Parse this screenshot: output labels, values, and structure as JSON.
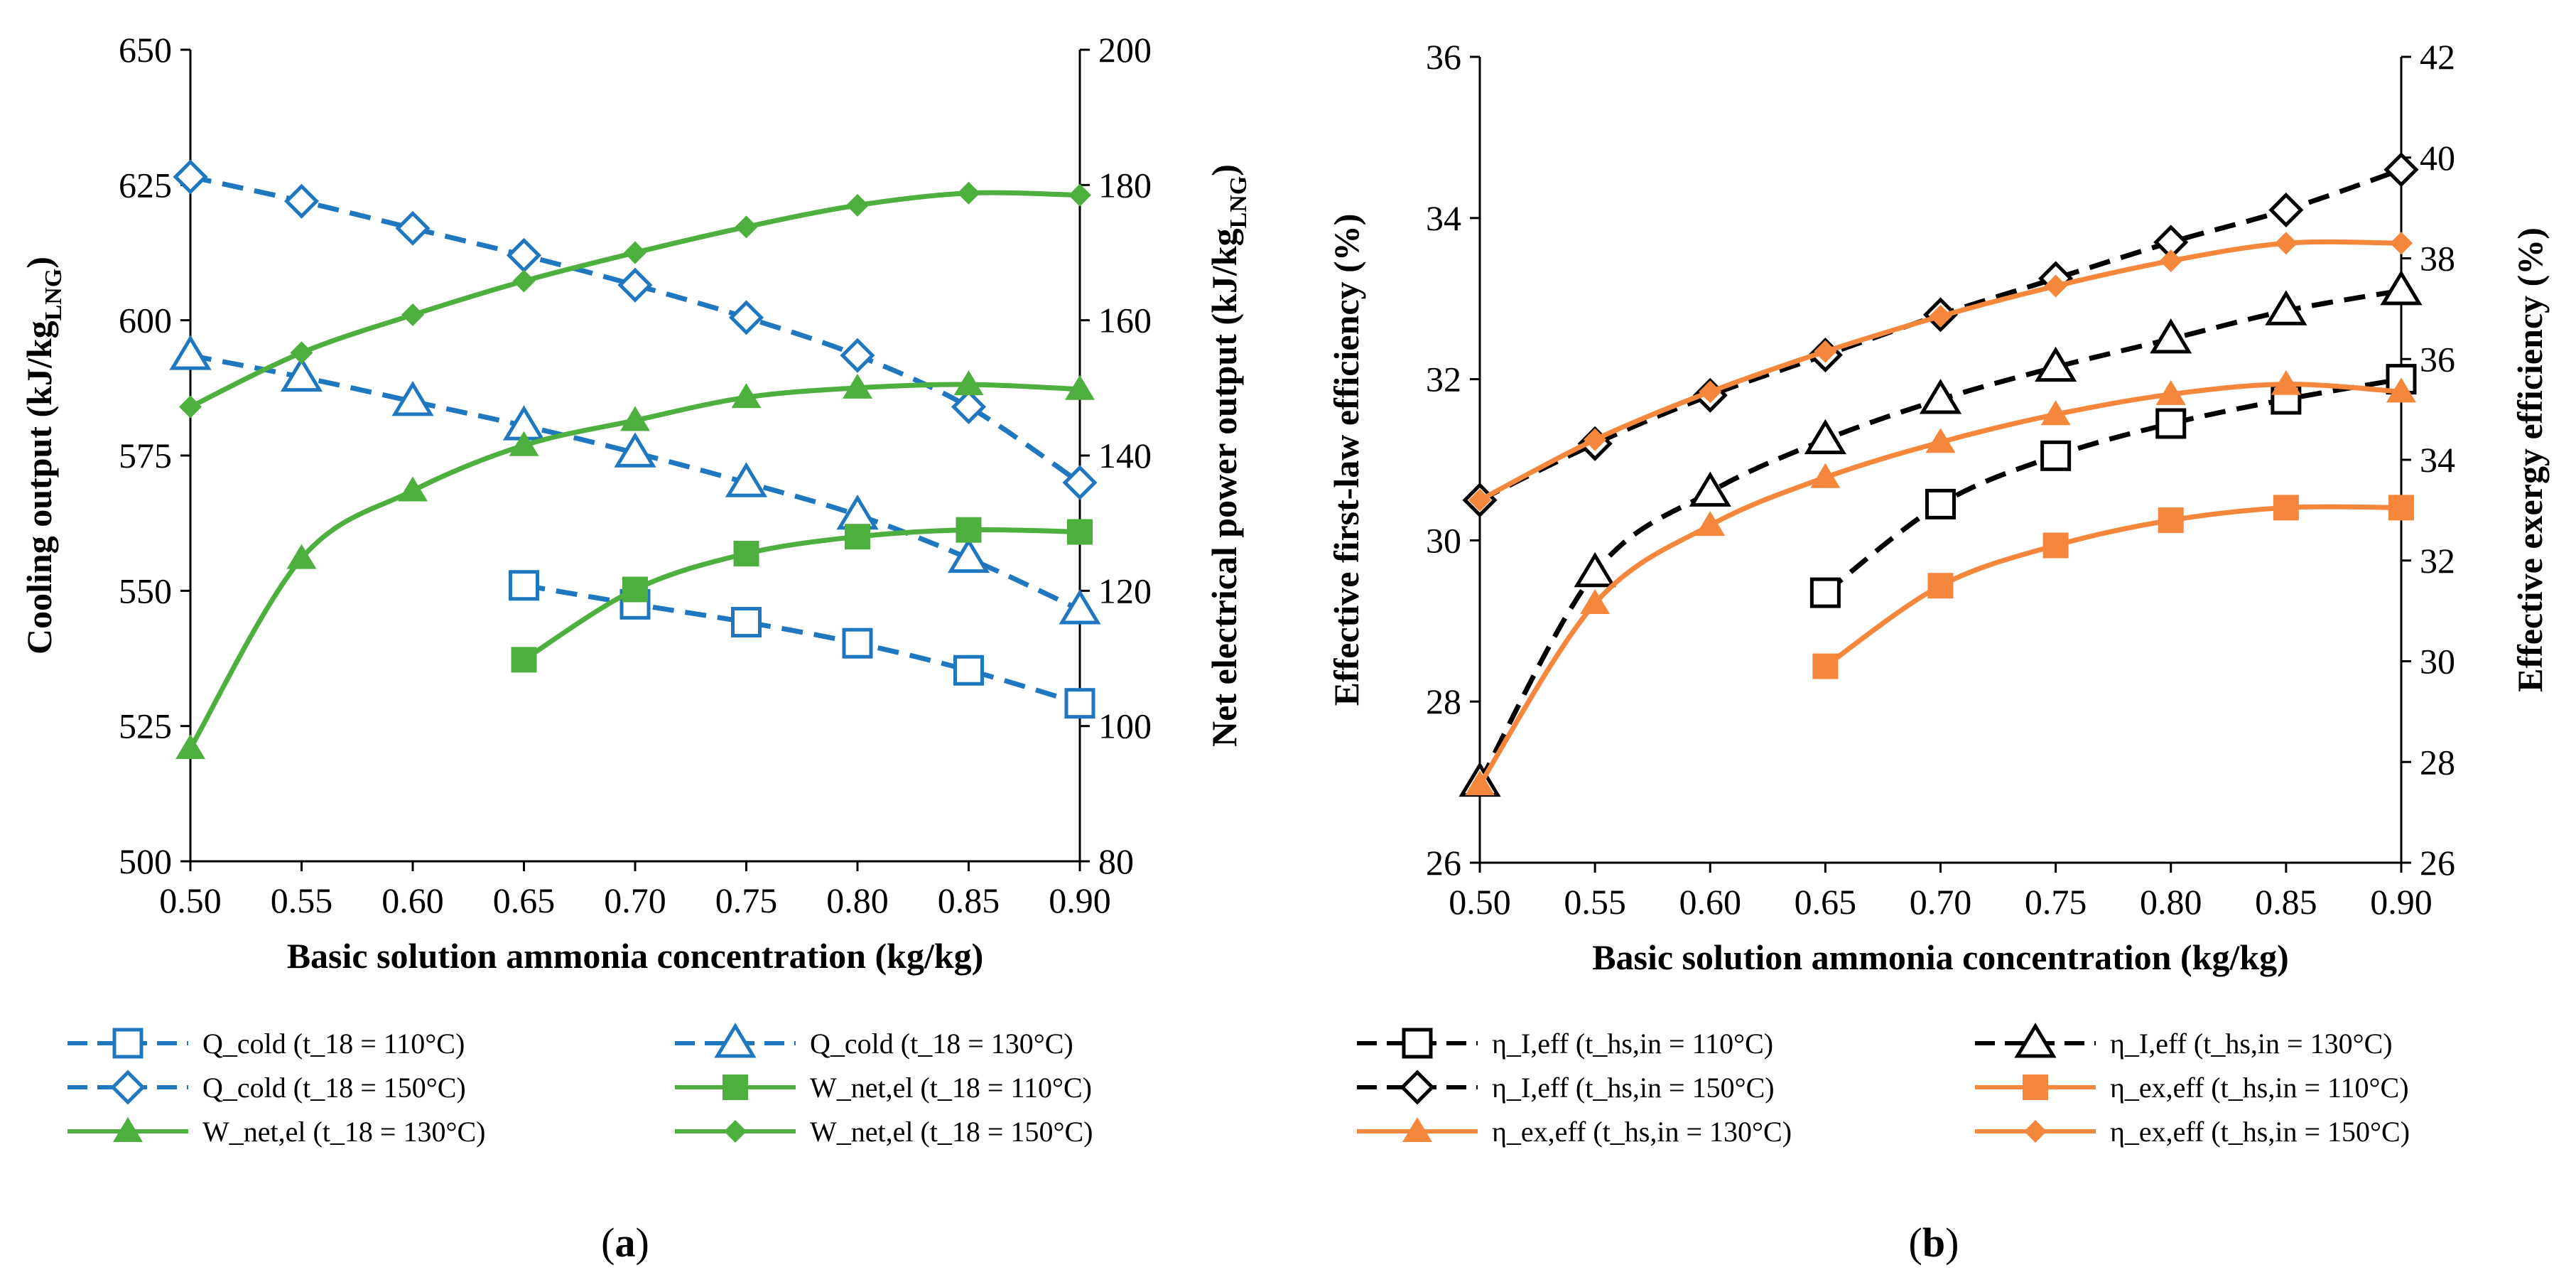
{
  "panels": [
    {
      "label": "(a)",
      "label_prefix": "(",
      "label_letter": "a",
      "label_suffix": ")"
    },
    {
      "label": "(b)",
      "label_prefix": "(",
      "label_letter": "b",
      "label_suffix": ")"
    }
  ],
  "colors": {
    "blue": "#1F77C0",
    "green": "#4DAF3D",
    "black": "#000000",
    "orange": "#F5873C"
  },
  "chart_data": [
    {
      "type": "line",
      "panel": "(a)",
      "x": [
        0.5,
        0.55,
        0.6,
        0.65,
        0.7,
        0.75,
        0.8,
        0.85,
        0.9
      ],
      "x_ticks": [
        "0.50",
        "0.55",
        "0.60",
        "0.65",
        "0.70",
        "0.75",
        "0.80",
        "0.85",
        "0.90"
      ],
      "xlim": [
        0.5,
        0.9
      ],
      "xlabel": "Basic solution ammonia concentration (kg/kg)",
      "ylabel_left": {
        "main": "Cooling output (kJ/kg",
        "sub": "LNG",
        "close": ")"
      },
      "ylabel_right": {
        "main": "Net electrical power output (kJ/kg",
        "sub": "LNG",
        "close": ")"
      },
      "ylim_left": [
        500,
        650
      ],
      "yticks_left": [
        "500",
        "525",
        "550",
        "575",
        "600",
        "625",
        "650"
      ],
      "ylim_right": [
        80,
        200
      ],
      "yticks_right": [
        "80",
        "100",
        "120",
        "140",
        "160",
        "180",
        "200"
      ],
      "series": [
        {
          "name": "Q_cold (t_18 = 110°C)",
          "axis": "left",
          "color": "blue",
          "dash": true,
          "marker": "square",
          "filled": false,
          "values": [
            null,
            null,
            null,
            551.0,
            547.5,
            544.2,
            540.3,
            535.3,
            529.2
          ]
        },
        {
          "name": "Q_cold (t_18 = 130°C)",
          "axis": "left",
          "color": "blue",
          "dash": true,
          "marker": "triangle",
          "filled": false,
          "values": [
            593.5,
            589.5,
            585.0,
            580.5,
            575.5,
            570.0,
            564.0,
            556.0,
            546.5
          ]
        },
        {
          "name": "Q_cold (t_18 = 150°C)",
          "axis": "left",
          "color": "blue",
          "dash": true,
          "marker": "diamond",
          "filled": false,
          "values": [
            626.5,
            622.0,
            617.0,
            612.0,
            606.5,
            600.5,
            593.5,
            584.0,
            570.0
          ]
        },
        {
          "name": "W_net,el (t_18 = 110°C)",
          "axis": "right",
          "color": "green",
          "dash": false,
          "marker": "square",
          "filled": true,
          "values": [
            null,
            null,
            null,
            109.8,
            120.2,
            125.5,
            128.0,
            129.0,
            128.7
          ]
        },
        {
          "name": "W_net,el (t_18 = 130°C)",
          "axis": "right",
          "color": "green",
          "dash": false,
          "marker": "triangle",
          "filled": true,
          "values": [
            96.7,
            124.8,
            134.8,
            141.5,
            145.2,
            148.6,
            150.0,
            150.5,
            149.8
          ]
        },
        {
          "name": "W_net,el (t_18 = 150°C)",
          "axis": "right",
          "color": "green",
          "dash": false,
          "marker": "diamond",
          "filled": true,
          "values": [
            147.2,
            155.2,
            160.8,
            165.8,
            170.0,
            173.8,
            177.0,
            178.8,
            178.5
          ]
        }
      ]
    },
    {
      "type": "line",
      "panel": "(b)",
      "x": [
        0.5,
        0.55,
        0.6,
        0.65,
        0.7,
        0.75,
        0.8,
        0.85,
        0.9
      ],
      "x_ticks": [
        "0.50",
        "0.55",
        "0.60",
        "0.65",
        "0.70",
        "0.75",
        "0.80",
        "0.85",
        "0.90"
      ],
      "xlim": [
        0.5,
        0.9
      ],
      "xlabel": "Basic solution ammonia concentration (kg/kg)",
      "ylabel_left": {
        "main": "Effective first-law efficiency (%)",
        "sub": "",
        "close": ""
      },
      "ylabel_right": {
        "main": "Effective exergy efficiency (%)",
        "sub": "",
        "close": ""
      },
      "ylim_left": [
        26,
        36
      ],
      "yticks_left": [
        "26",
        "28",
        "30",
        "32",
        "34",
        "36"
      ],
      "ylim_right": [
        26,
        42
      ],
      "yticks_right": [
        "26",
        "28",
        "30",
        "32",
        "34",
        "36",
        "38",
        "40",
        "42"
      ],
      "series": [
        {
          "name": "η_I,eff (t_hs,in = 110°C)",
          "axis": "left",
          "color": "black",
          "dash": true,
          "marker": "square",
          "filled": false,
          "values": [
            null,
            null,
            null,
            29.35,
            30.45,
            31.05,
            31.45,
            31.75,
            32.0
          ]
        },
        {
          "name": "η_I,eff (t_hs,in = 130°C)",
          "axis": "left",
          "color": "black",
          "dash": true,
          "marker": "triangle",
          "filled": false,
          "values": [
            27.0,
            29.6,
            30.6,
            31.25,
            31.75,
            32.15,
            32.5,
            32.85,
            33.1
          ]
        },
        {
          "name": "η_I,eff (t_hs,in = 150°C)",
          "axis": "left",
          "color": "black",
          "dash": true,
          "marker": "diamond",
          "filled": false,
          "values": [
            30.5,
            31.2,
            31.8,
            32.3,
            32.8,
            33.25,
            33.7,
            34.1,
            34.6
          ]
        },
        {
          "name": "η_ex,eff (t_hs,in = 110°C)",
          "axis": "right",
          "color": "orange",
          "dash": false,
          "marker": "square",
          "filled": true,
          "values": [
            null,
            null,
            null,
            29.9,
            31.5,
            32.3,
            32.8,
            33.05,
            33.05
          ]
        },
        {
          "name": "η_ex,eff (t_hs,in = 130°C)",
          "axis": "right",
          "color": "orange",
          "dash": false,
          "marker": "triangle",
          "filled": true,
          "values": [
            27.55,
            31.15,
            32.7,
            33.65,
            34.35,
            34.9,
            35.3,
            35.5,
            35.35
          ]
        },
        {
          "name": "η_ex,eff (t_hs,in = 150°C)",
          "axis": "right",
          "color": "orange",
          "dash": false,
          "marker": "diamond",
          "filled": true,
          "values": [
            33.2,
            34.4,
            35.35,
            36.15,
            36.85,
            37.45,
            37.95,
            38.3,
            38.3
          ]
        }
      ]
    }
  ]
}
